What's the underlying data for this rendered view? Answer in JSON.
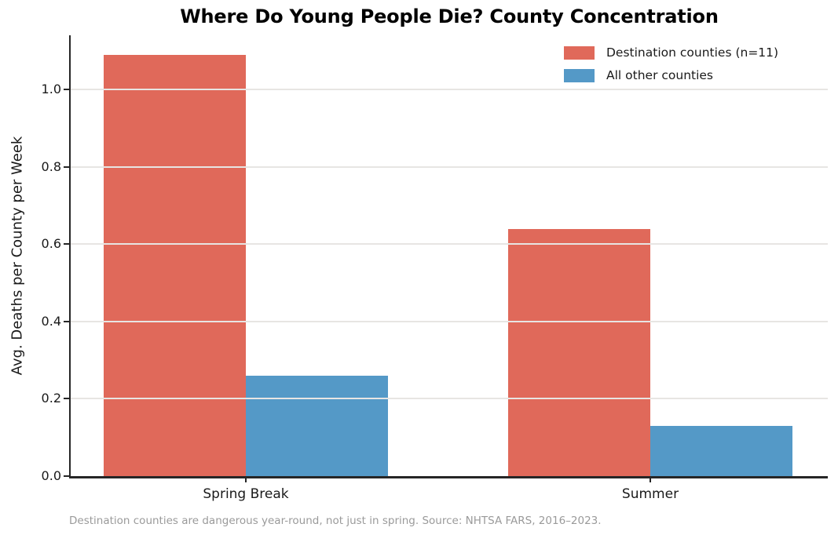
{
  "title": "Where Do Young People Die? County Concentration",
  "footnote": "Destination counties are dangerous year-round, not just in spring. Source: NHTSA FARS, 2016–2023.",
  "colors": {
    "destination_bar": "#e0695a",
    "other_bar": "#5499c7",
    "gridline": "#e7e5e3",
    "axis": "#262626",
    "text": "#1a1a1a",
    "footnote_text": "#9a9a9a",
    "background": "#ffffff"
  },
  "chart_data": {
    "type": "bar",
    "title": "Where Do Young People Die? County Concentration",
    "categories": [
      "Spring Break",
      "Summer"
    ],
    "series": [
      {
        "name": "Destination counties (n=11)",
        "color": "#e0695a",
        "values": [
          1.09,
          0.64
        ]
      },
      {
        "name": "All other counties",
        "color": "#5499c7",
        "values": [
          0.26,
          0.13
        ]
      }
    ],
    "xlabel": "",
    "ylabel": "Avg. Deaths per County per Week",
    "ylim": [
      0,
      1.14
    ],
    "yticks": [
      0.0,
      0.2,
      0.4,
      0.6,
      0.8,
      1.0
    ],
    "ytick_labels": [
      "0.0",
      "0.2",
      "0.4",
      "0.6",
      "0.8",
      "1.0"
    ],
    "grid": true,
    "grid_on_top_of_bars": true,
    "legend_position": "upper right"
  }
}
